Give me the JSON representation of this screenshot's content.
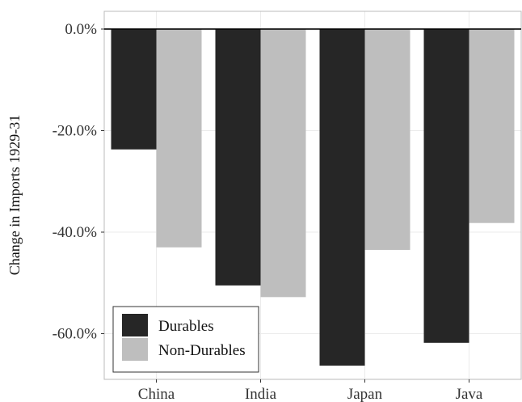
{
  "chart_data": {
    "type": "bar",
    "categories": [
      "China",
      "India",
      "Japan",
      "Java"
    ],
    "series": [
      {
        "name": "Durables",
        "values": [
          -23.7,
          -50.5,
          -66.3,
          -61.8
        ],
        "color": "#262626"
      },
      {
        "name": "Non-Durables",
        "values": [
          -43.0,
          -52.8,
          -43.5,
          -38.2
        ],
        "color": "#bebebe"
      }
    ],
    "ylabel": "Change in Imports 1929-31",
    "ylim": [
      -69,
      3.5
    ],
    "yticks": [
      0,
      -20,
      -40,
      -60
    ],
    "ytick_labels": [
      "0.0%",
      "-20.0%",
      "-40.0%",
      "-60.0%"
    ],
    "grid": true,
    "legend_position": "bottom-left"
  }
}
